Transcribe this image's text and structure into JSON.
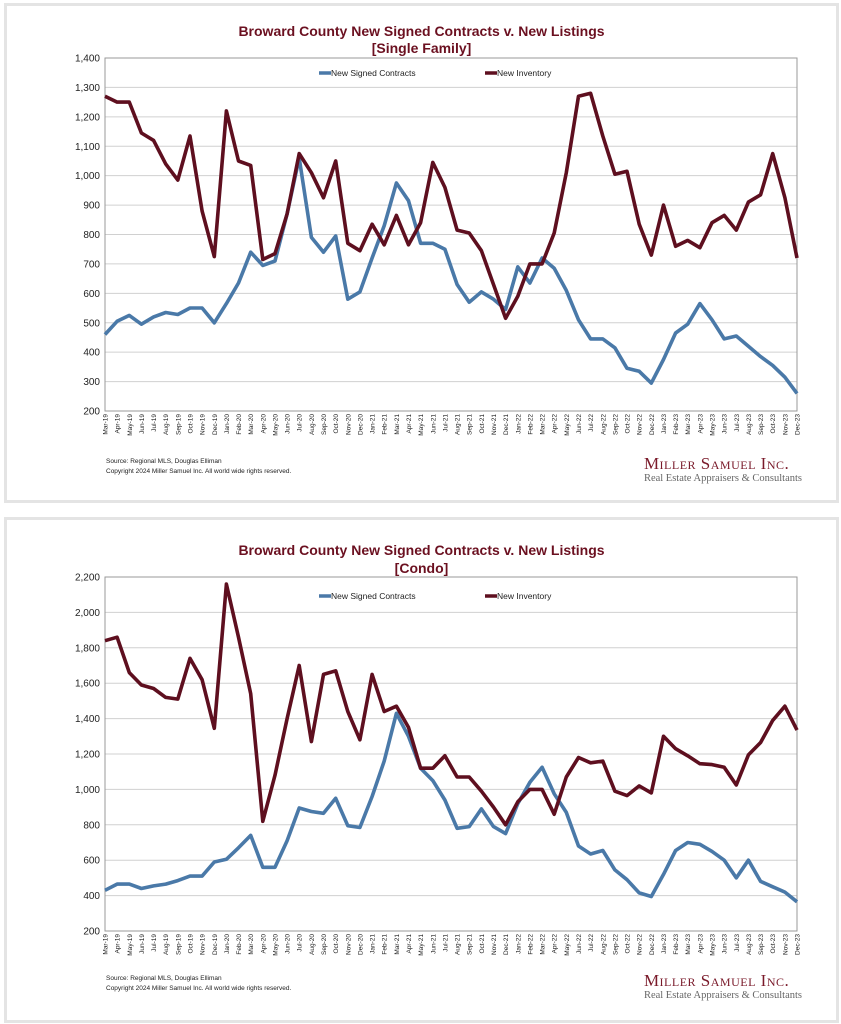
{
  "colors": {
    "contracts": "#4a79a8",
    "inventory": "#5e0f1f",
    "title": "#6b1020",
    "grid": "#d0d0d0"
  },
  "logo": {
    "name": "Miller Samuel Inc.",
    "tagline": "Real Estate Appraisers & Consultants"
  },
  "chart_data": [
    {
      "type": "line",
      "title": "Broward County New Signed Contracts v. New Listings",
      "subtitle": "[Single Family]",
      "ylim": [
        200,
        1400
      ],
      "yticks": [
        "200",
        "300",
        "400",
        "500",
        "600",
        "700",
        "800",
        "900",
        "1,000",
        "1,100",
        "1,200",
        "1,300",
        "1,400"
      ],
      "grid": true,
      "legend": "top-center",
      "source": "Source: Regional MLS, Douglas Elliman",
      "copyright": "Copyright 2024 Miller Samuel Inc.  All world wide rights reserved.",
      "x": [
        "Mar-19",
        "Apr-19",
        "May-19",
        "Jun-19",
        "Jul-19",
        "Aug-19",
        "Sep-19",
        "Oct-19",
        "Nov-19",
        "Dec-19",
        "Jan-20",
        "Feb-20",
        "Mar-20",
        "Apr-20",
        "May-20",
        "Jun-20",
        "Jul-20",
        "Aug-20",
        "Sep-20",
        "Oct-20",
        "Nov-20",
        "Dec-20",
        "Jan-21",
        "Feb-21",
        "Mar-21",
        "Apr-21",
        "May-21",
        "Jun-21",
        "Jul-21",
        "Aug-21",
        "Sep-21",
        "Oct-21",
        "Nov-21",
        "Dec-21",
        "Jan-22",
        "Feb-22",
        "Mar-22",
        "Apr-22",
        "May-22",
        "Jun-22",
        "Jul-22",
        "Aug-22",
        "Sep-22",
        "Oct-22",
        "Nov-22",
        "Dec-22",
        "Jan-23",
        "Feb-23",
        "Mar-23",
        "Apr-23",
        "May-23",
        "Jun-23",
        "Jul-23",
        "Aug-23",
        "Sep-23",
        "Oct-23",
        "Nov-23",
        "Dec-23"
      ],
      "series": [
        {
          "name": "New Signed Contracts",
          "key": "contracts",
          "values": [
            460,
            505,
            525,
            495,
            520,
            535,
            528,
            550,
            550,
            500,
            565,
            635,
            740,
            695,
            710,
            870,
            1060,
            790,
            740,
            795,
            580,
            605,
            720,
            830,
            975,
            915,
            770,
            770,
            750,
            630,
            570,
            605,
            580,
            545,
            690,
            635,
            720,
            685,
            610,
            510,
            445,
            445,
            415,
            345,
            335,
            295,
            375,
            465,
            495,
            565,
            510,
            445,
            455,
            420,
            385,
            355,
            315,
            260
          ]
        },
        {
          "name": "New Inventory",
          "key": "inventory",
          "values": [
            1270,
            1250,
            1250,
            1145,
            1120,
            1040,
            985,
            1135,
            880,
            725,
            1220,
            1050,
            1035,
            715,
            735,
            870,
            1075,
            1010,
            925,
            1050,
            770,
            745,
            835,
            765,
            865,
            765,
            840,
            1045,
            960,
            815,
            805,
            745,
            630,
            515,
            590,
            700,
            700,
            805,
            1010,
            1270,
            1280,
            1135,
            1005,
            1015,
            835,
            730,
            900,
            760,
            780,
            755,
            840,
            865,
            815,
            910,
            935,
            1075,
            925,
            720
          ]
        }
      ]
    },
    {
      "type": "line",
      "title": "Broward County New Signed Contracts v. New Listings",
      "subtitle": "[Condo]",
      "ylim": [
        200,
        2200
      ],
      "yticks": [
        "200",
        "400",
        "600",
        "800",
        "1,000",
        "1,200",
        "1,400",
        "1,600",
        "1,800",
        "2,000",
        "2,200"
      ],
      "grid": true,
      "legend": "top-center",
      "source": "Source: Regional MLS, Douglas Elliman",
      "copyright": "Copyright 2024 Miller Samuel Inc.  All world wide rights reserved.",
      "x": [
        "Mar-19",
        "Apr-19",
        "May-19",
        "Jun-19",
        "Jul-19",
        "Aug-19",
        "Sep-19",
        "Oct-19",
        "Nov-19",
        "Dec-19",
        "Jan-20",
        "Feb-20",
        "Mar-20",
        "Apr-20",
        "May-20",
        "Jun-20",
        "Jul-20",
        "Aug-20",
        "Sep-20",
        "Oct-20",
        "Nov-20",
        "Dec-20",
        "Jan-21",
        "Feb-21",
        "Mar-21",
        "Apr-21",
        "May-21",
        "Jun-21",
        "Jul-21",
        "Aug-21",
        "Sep-21",
        "Oct-21",
        "Nov-21",
        "Dec-21",
        "Jan-22",
        "Feb-22",
        "Mar-22",
        "Apr-22",
        "May-22",
        "Jun-22",
        "Jul-22",
        "Aug-22",
        "Sep-22",
        "Oct-22",
        "Nov-22",
        "Dec-22",
        "Jan-23",
        "Feb-23",
        "Mar-23",
        "Apr-23",
        "May-23",
        "Jun-23",
        "Jul-23",
        "Aug-23",
        "Sep-23",
        "Oct-23",
        "Nov-23",
        "Dec-23"
      ],
      "series": [
        {
          "name": "New Signed Contracts",
          "key": "contracts",
          "values": [
            430,
            465,
            465,
            440,
            455,
            465,
            485,
            510,
            510,
            590,
            605,
            670,
            740,
            560,
            560,
            710,
            895,
            875,
            865,
            950,
            795,
            785,
            960,
            1160,
            1430,
            1300,
            1120,
            1050,
            940,
            780,
            790,
            890,
            790,
            750,
            920,
            1040,
            1125,
            975,
            870,
            680,
            635,
            655,
            545,
            490,
            415,
            395,
            520,
            655,
            700,
            690,
            650,
            600,
            500,
            600,
            480,
            450,
            420,
            365
          ]
        },
        {
          "name": "New Inventory",
          "key": "inventory",
          "values": [
            1840,
            1860,
            1660,
            1590,
            1570,
            1520,
            1510,
            1740,
            1620,
            1345,
            2160,
            1860,
            1540,
            820,
            1080,
            1400,
            1700,
            1270,
            1650,
            1670,
            1440,
            1280,
            1650,
            1440,
            1470,
            1350,
            1120,
            1120,
            1190,
            1070,
            1070,
            990,
            900,
            800,
            930,
            1000,
            1000,
            860,
            1070,
            1180,
            1150,
            1160,
            990,
            965,
            1020,
            980,
            1300,
            1230,
            1190,
            1145,
            1140,
            1125,
            1025,
            1195,
            1265,
            1390,
            1470,
            1335
          ]
        }
      ]
    }
  ]
}
